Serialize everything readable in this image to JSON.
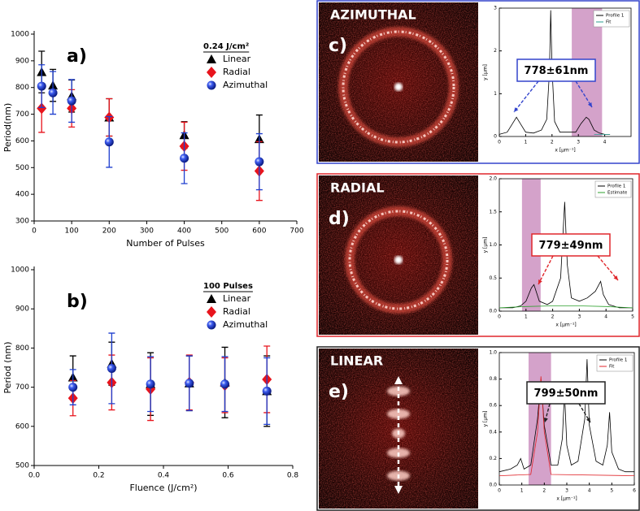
{
  "chart_data": [
    {
      "type": "scatter",
      "panel_label": "a)",
      "xlabel": "Number of Pulses",
      "ylabel": "Period(nm)",
      "xlim": [
        0,
        700
      ],
      "ylim": [
        300,
        1000
      ],
      "xticks": [
        0,
        100,
        200,
        300,
        400,
        500,
        600,
        700
      ],
      "yticks": [
        300,
        400,
        500,
        600,
        700,
        800,
        900,
        1000
      ],
      "legend_title": "0.24 J/cm²",
      "series": [
        {
          "name": "Linear",
          "color": "#000000",
          "marker": "triangle",
          "x": [
            20,
            50,
            100,
            200,
            400,
            600
          ],
          "values": [
            858,
            808,
            768,
            688,
            622,
            607
          ],
          "errors": [
            78,
            60,
            60,
            70,
            50,
            90
          ]
        },
        {
          "name": "Radial",
          "color": "#e8141c",
          "marker": "diamond",
          "x": [
            20,
            100,
            200,
            400,
            600
          ],
          "values": [
            722,
            722,
            688,
            580,
            487
          ],
          "errors": [
            90,
            70,
            70,
            90,
            110
          ]
        },
        {
          "name": "Azimuthal",
          "color": "#1f3fcf",
          "marker": "sphere",
          "x": [
            20,
            50,
            100,
            200,
            400,
            600
          ],
          "values": [
            805,
            780,
            750,
            596,
            535,
            522
          ],
          "errors": [
            80,
            80,
            80,
            95,
            95,
            105
          ]
        }
      ]
    },
    {
      "type": "scatter",
      "panel_label": "b)",
      "xlabel": "Fluence (J/cm²)",
      "ylabel": "Period (nm)",
      "xlim": [
        0,
        0.8
      ],
      "ylim": [
        500,
        1000
      ],
      "xticks": [
        {
          "value": 0,
          "label": "0.0"
        },
        0.2,
        0.4,
        0.6,
        0.8
      ],
      "yticks": [
        500,
        600,
        700,
        800,
        900,
        1000
      ],
      "legend_title": "100 Pulses",
      "series": [
        {
          "name": "Linear",
          "color": "#000000",
          "marker": "triangle",
          "x": [
            0.12,
            0.24,
            0.36,
            0.48,
            0.59,
            0.72
          ],
          "values": [
            725,
            760,
            708,
            710,
            712,
            690
          ],
          "errors": [
            55,
            55,
            80,
            70,
            90,
            90
          ]
        },
        {
          "name": "Radial",
          "color": "#e8141c",
          "marker": "diamond",
          "x": [
            0.12,
            0.24,
            0.36,
            0.48,
            0.59,
            0.72
          ],
          "values": [
            672,
            712,
            695,
            712,
            705,
            720
          ],
          "errors": [
            45,
            70,
            80,
            70,
            70,
            85
          ]
        },
        {
          "name": "Azimuthal",
          "color": "#1f3fcf",
          "marker": "sphere",
          "x": [
            0.12,
            0.24,
            0.36,
            0.48,
            0.59,
            0.72
          ],
          "values": [
            700,
            748,
            708,
            710,
            708,
            690
          ],
          "errors": [
            45,
            90,
            70,
            70,
            70,
            85
          ]
        }
      ]
    },
    {
      "type": "line",
      "panel_label": "c)",
      "title": "AZIMUTHAL",
      "annotation": "778±61nm",
      "color": "#3344cc",
      "xlabel": "x [µm⁻¹]",
      "ylabel": "y [µm]",
      "xlim": [
        0,
        5
      ],
      "ylim": [
        0,
        3
      ],
      "xticks": [
        0,
        1,
        2,
        3,
        4
      ],
      "yticks": [
        0,
        1,
        2,
        3
      ],
      "highlight": [
        2.75,
        3.9
      ],
      "highlight_color": "#c98bbd",
      "series": [
        {
          "name": "Profile 1",
          "color": "#000000",
          "x": [
            0,
            0.3,
            0.5,
            0.65,
            0.8,
            1.0,
            1.3,
            1.6,
            1.8,
            1.9,
            1.95,
            2.0,
            2.1,
            2.3,
            2.6,
            2.9,
            3.1,
            3.3,
            3.4,
            3.6,
            3.8,
            4.0,
            4.2
          ],
          "values": [
            0.05,
            0.1,
            0.3,
            0.45,
            0.3,
            0.1,
            0.08,
            0.15,
            0.4,
            1.5,
            2.95,
            1.6,
            0.35,
            0.1,
            0.1,
            0.1,
            0.3,
            0.45,
            0.4,
            0.15,
            0.08,
            0.05,
            0.05
          ]
        },
        {
          "name": "Fit",
          "color": "#2a9d8f",
          "x": [
            3.6,
            4.2
          ],
          "values": [
            0.05,
            0.05
          ]
        }
      ]
    },
    {
      "type": "line",
      "panel_label": "d)",
      "title": "RADIAL",
      "annotation": "779±49nm",
      "color": "#e0262b",
      "xlabel": "x [µm⁻¹]",
      "ylabel": "y [µm]",
      "xlim": [
        0,
        5
      ],
      "ylim": [
        0,
        2
      ],
      "xticks": [
        0,
        1,
        2,
        3,
        4,
        5
      ],
      "yticks": [
        {
          "value": 0,
          "label": "0.0"
        },
        0.5,
        {
          "value": 1,
          "label": "1.0"
        },
        1.5,
        {
          "value": 2,
          "label": "2.0"
        }
      ],
      "highlight": [
        0.85,
        1.55
      ],
      "highlight_color": "#c98bbd",
      "series": [
        {
          "name": "Profile 1",
          "color": "#000000",
          "x": [
            0,
            0.5,
            0.8,
            1.0,
            1.2,
            1.3,
            1.5,
            1.8,
            2.0,
            2.3,
            2.45,
            2.55,
            2.7,
            3.0,
            3.3,
            3.6,
            3.8,
            3.9,
            4.1,
            4.5,
            5
          ],
          "values": [
            0.05,
            0.05,
            0.08,
            0.15,
            0.35,
            0.4,
            0.15,
            0.1,
            0.15,
            0.5,
            1.65,
            0.7,
            0.2,
            0.15,
            0.2,
            0.3,
            0.45,
            0.25,
            0.1,
            0.05,
            0.05
          ]
        },
        {
          "name": "Estimate",
          "color": "#2ca02c",
          "x": [
            0,
            1,
            2,
            3,
            4,
            5
          ],
          "values": [
            0.05,
            0.07,
            0.08,
            0.08,
            0.07,
            0.05
          ]
        }
      ]
    },
    {
      "type": "line",
      "panel_label": "e)",
      "title": "LINEAR",
      "annotation": "799±50nm",
      "color": "#222222",
      "xlabel": "x [µm⁻¹]",
      "ylabel": "y [µm]",
      "xlim": [
        0,
        6
      ],
      "ylim": [
        0,
        1
      ],
      "xticks": [
        0,
        1,
        2,
        3,
        4,
        5,
        6
      ],
      "yticks": [
        {
          "value": 0,
          "label": "0.0"
        },
        0.2,
        0.4,
        0.6,
        0.8,
        {
          "value": 1,
          "label": "1.0"
        }
      ],
      "highlight": [
        1.3,
        2.3
      ],
      "highlight_color": "#c98bbd",
      "series": [
        {
          "name": "Profile 1",
          "color": "#000000",
          "x": [
            0,
            0.5,
            0.8,
            0.95,
            1.1,
            1.4,
            1.7,
            1.85,
            2.0,
            2.3,
            2.6,
            2.8,
            2.9,
            3.0,
            3.2,
            3.5,
            3.8,
            3.9,
            4.0,
            4.3,
            4.6,
            4.8,
            4.9,
            5.0,
            5.3,
            5.6,
            6.0
          ],
          "values": [
            0.1,
            0.12,
            0.15,
            0.2,
            0.12,
            0.15,
            0.5,
            0.8,
            0.45,
            0.15,
            0.15,
            0.35,
            0.7,
            0.3,
            0.15,
            0.18,
            0.5,
            0.95,
            0.45,
            0.18,
            0.15,
            0.3,
            0.55,
            0.25,
            0.12,
            0.1,
            0.1
          ]
        },
        {
          "name": "Fit",
          "color": "#e0262b",
          "x": [
            0,
            1.4,
            1.7,
            1.85,
            2.0,
            2.3,
            6.0
          ],
          "values": [
            0.07,
            0.08,
            0.4,
            0.82,
            0.4,
            0.08,
            0.07
          ]
        }
      ]
    }
  ]
}
